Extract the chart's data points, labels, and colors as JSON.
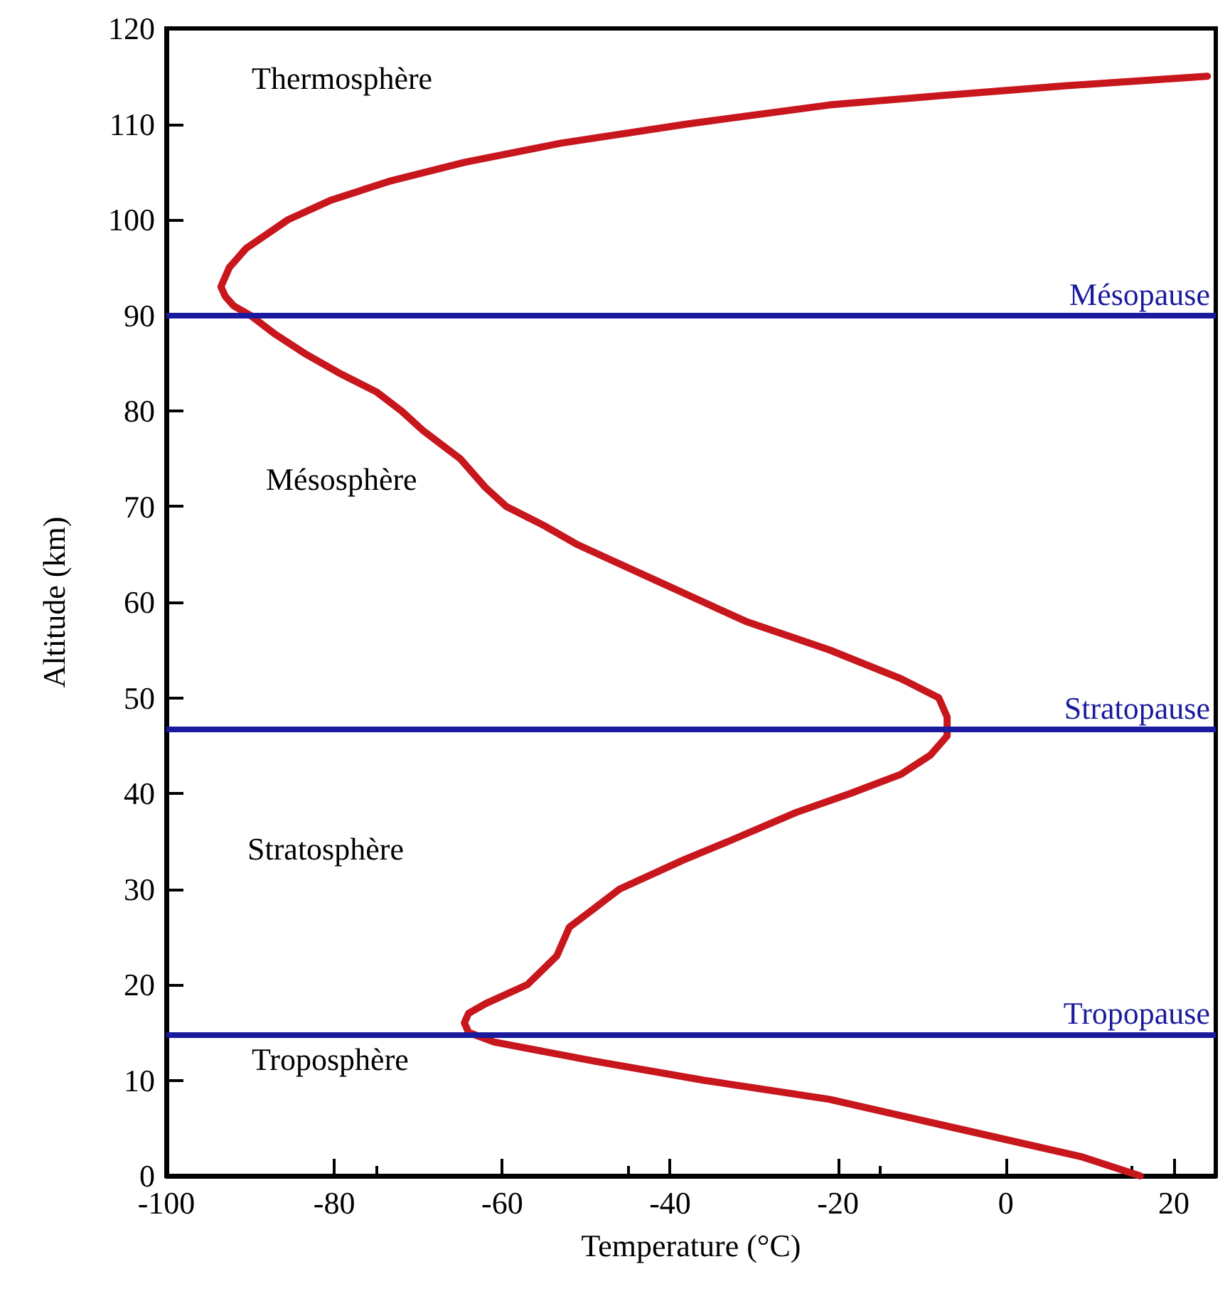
{
  "chart_data": {
    "type": "line",
    "xlabel": "Temperature (°C)",
    "ylabel": "Altitude (km)",
    "xlim": [
      -100,
      25
    ],
    "xticks": [
      -100,
      -80,
      -60,
      -40,
      -20,
      0,
      20
    ],
    "ylim": [
      0,
      120
    ],
    "yticks": [
      0,
      10,
      20,
      30,
      40,
      50,
      60,
      70,
      80,
      90,
      100,
      110,
      120
    ],
    "marker": "none",
    "line_style": "solid",
    "series": [
      {
        "color": "#c8161d",
        "x": [
          16,
          9,
          -6,
          -21,
          -36,
          -49,
          -61,
          -64,
          -64.5,
          -64,
          -62,
          -57,
          -53.5,
          -52,
          -49,
          -46,
          -38.5,
          -33,
          -25,
          -18.5,
          -12.5,
          -9,
          -7,
          -7,
          -8,
          -12.5,
          -21,
          -31,
          -36,
          -41,
          -46,
          -51,
          -55,
          -59.5,
          -62,
          -65,
          -69.5,
          -72,
          -75,
          -79.5,
          -83.5,
          -87,
          -90,
          -92,
          -93,
          -93.5,
          -92.5,
          -90.5,
          -85.5,
          -80.5,
          -73.5,
          -64.5,
          -53,
          -38,
          -21,
          -7.5,
          7,
          24
        ],
        "values": [
          0,
          2,
          5,
          8,
          10,
          12,
          14,
          15,
          16,
          17,
          18,
          20,
          23,
          26,
          28,
          30,
          33,
          35,
          38,
          40,
          42,
          44,
          46,
          48,
          50,
          52,
          55,
          58,
          60,
          62,
          64,
          66,
          68,
          70,
          72,
          75,
          78,
          80,
          82,
          84,
          86,
          88,
          90,
          91,
          92,
          93,
          95,
          97,
          100,
          102,
          104,
          106,
          108,
          110,
          112,
          113,
          114,
          115
        ]
      }
    ],
    "ref_lines": [
      {
        "axis": "y",
        "value": 90,
        "label": "Mésopause",
        "color": "#1a1a9e"
      },
      {
        "axis": "y",
        "value": 46.7,
        "label": "Stratopause",
        "color": "#1a1a9e"
      },
      {
        "axis": "y",
        "value": 14.8,
        "label": "Tropopause",
        "color": "#1a1a9e"
      }
    ],
    "annotations": [
      "Thermosphère",
      "Mésosphère",
      "Stratosphère",
      "Troposphère"
    ]
  }
}
